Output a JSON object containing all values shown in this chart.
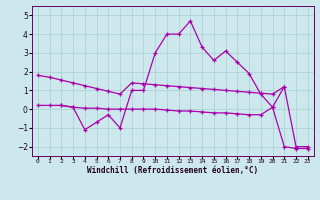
{
  "xlabel": "Windchill (Refroidissement éolien,°C)",
  "x": [
    0,
    1,
    2,
    3,
    4,
    5,
    6,
    7,
    8,
    9,
    10,
    11,
    12,
    13,
    14,
    15,
    16,
    17,
    18,
    19,
    20,
    21,
    22,
    23
  ],
  "line_top": [
    1.8,
    1.7,
    1.55,
    1.4,
    1.25,
    1.1,
    0.95,
    0.8,
    1.4,
    1.35,
    1.3,
    1.25,
    1.2,
    1.15,
    1.1,
    1.05,
    1.0,
    0.95,
    0.9,
    0.85,
    0.8,
    1.2,
    -2.0,
    -2.0
  ],
  "line_mid": [
    null,
    null,
    0.2,
    0.1,
    -1.1,
    -0.7,
    -0.3,
    -1.0,
    1.0,
    1.0,
    3.0,
    4.0,
    4.0,
    4.7,
    3.3,
    2.6,
    3.1,
    2.5,
    1.9,
    0.8,
    0.1,
    1.2,
    null,
    null
  ],
  "line_bot": [
    0.2,
    0.2,
    0.2,
    0.1,
    0.05,
    0.05,
    0.0,
    0.0,
    0.0,
    0.0,
    0.0,
    -0.05,
    -0.1,
    -0.1,
    -0.15,
    -0.2,
    -0.2,
    -0.25,
    -0.3,
    -0.3,
    0.1,
    -2.0,
    -2.1,
    -2.1
  ],
  "ylim": [
    -2.5,
    5.5
  ],
  "yticks": [
    -2,
    -1,
    0,
    1,
    2,
    3,
    4,
    5
  ],
  "bg_color": "#cde8ec",
  "grid_color": "#a8cfd5",
  "line_color": "#aa00aa",
  "markersize": 3.5,
  "linewidth": 0.9
}
